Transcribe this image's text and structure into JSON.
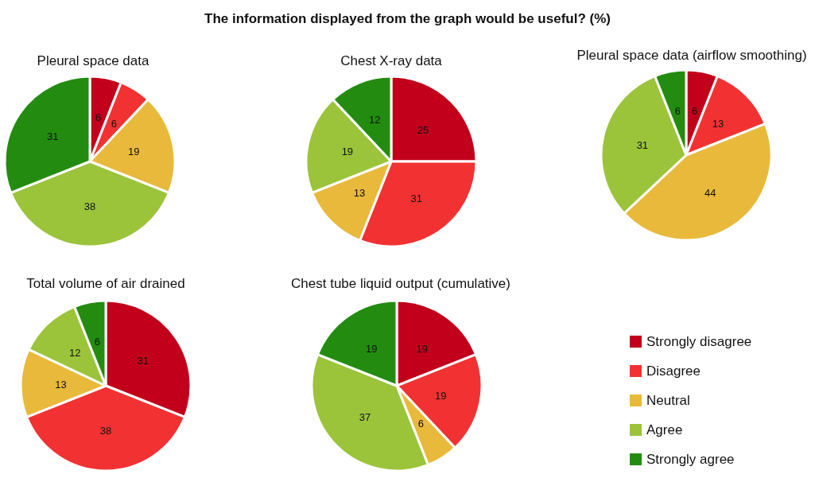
{
  "chart_data": {
    "type": "pie",
    "title": "The information displayed from the graph would be useful? (%)",
    "categories": [
      "Strongly disagree",
      "Disagree",
      "Neutral",
      "Agree",
      "Strongly agree"
    ],
    "colors": [
      "#c2001b",
      "#f23232",
      "#e9b93b",
      "#9bc43b",
      "#238c10"
    ],
    "data_labels": true,
    "legend": "bottom right",
    "series": [
      {
        "name": "Pleural space data",
        "values": [
          6,
          6,
          19,
          38,
          31
        ]
      },
      {
        "name": "Chest X-ray data",
        "values": [
          25,
          31,
          13,
          19,
          12
        ]
      },
      {
        "name": "Pleural space data (airflow smoothing)",
        "values": [
          6,
          13,
          44,
          31,
          6
        ]
      },
      {
        "name": "Total volume of air drained",
        "values": [
          31,
          38,
          13,
          12,
          6
        ]
      },
      {
        "name": "Chest tube liquid output (cumulative)",
        "values": [
          19,
          19,
          6,
          37,
          19
        ]
      }
    ]
  }
}
